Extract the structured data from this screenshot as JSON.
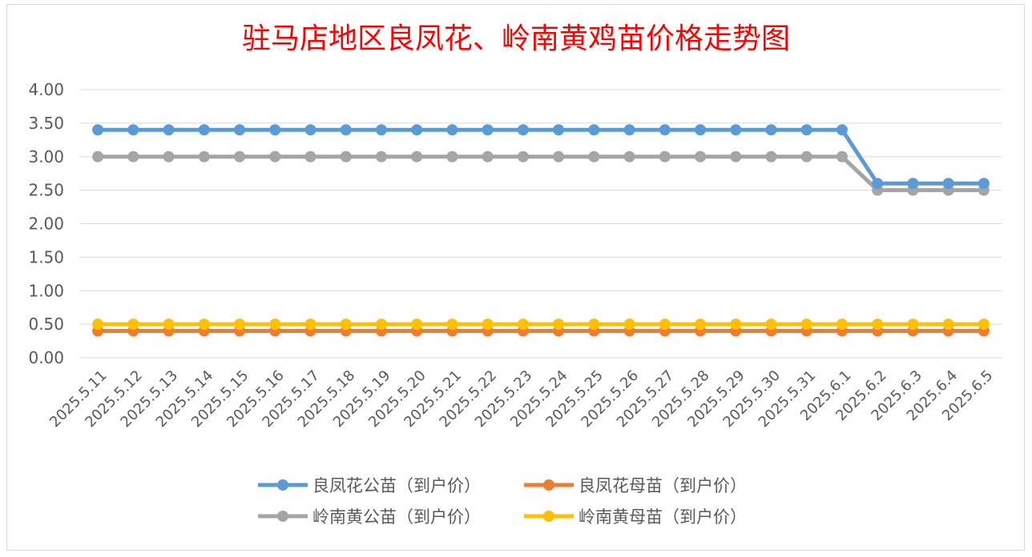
{
  "chart_data": {
    "type": "line",
    "title": "驻马店地区良凤花、岭南黄鸡苗价格走势图",
    "xlabel": "",
    "ylabel": "",
    "ylim": [
      0,
      4
    ],
    "yticks": [
      "0.00",
      "0.50",
      "1.00",
      "1.50",
      "2.00",
      "2.50",
      "3.00",
      "3.50",
      "4.00"
    ],
    "grid": true,
    "legend_position": "bottom",
    "categories": [
      "2025.5.11",
      "2025.5.12",
      "2025.5.13",
      "2025.5.14",
      "2025.5.15",
      "2025.5.16",
      "2025.5.17",
      "2025.5.18",
      "2025.5.19",
      "2025.5.20",
      "2025.5.21",
      "2025.5.22",
      "2025.5.23",
      "2025.5.24",
      "2025.5.25",
      "2025.5.26",
      "2025.5.27",
      "2025.5.28",
      "2025.5.29",
      "2025.5.30",
      "2025.5.31",
      "2025.6.1",
      "2025.6.2",
      "2025.6.3",
      "2025.6.4",
      "2025.6.5"
    ],
    "series": [
      {
        "name": "良凤花公苗（到户价）",
        "color": "#5B9BD5",
        "values": [
          3.4,
          3.4,
          3.4,
          3.4,
          3.4,
          3.4,
          3.4,
          3.4,
          3.4,
          3.4,
          3.4,
          3.4,
          3.4,
          3.4,
          3.4,
          3.4,
          3.4,
          3.4,
          3.4,
          3.4,
          3.4,
          3.4,
          2.6,
          2.6,
          2.6,
          2.6
        ]
      },
      {
        "name": "良凤花母苗（到户价）",
        "color": "#ED7D31",
        "values": [
          0.4,
          0.4,
          0.4,
          0.4,
          0.4,
          0.4,
          0.4,
          0.4,
          0.4,
          0.4,
          0.4,
          0.4,
          0.4,
          0.4,
          0.4,
          0.4,
          0.4,
          0.4,
          0.4,
          0.4,
          0.4,
          0.4,
          0.4,
          0.4,
          0.4,
          0.4
        ]
      },
      {
        "name": "岭南黄公苗（到户价）",
        "color": "#A5A5A5",
        "values": [
          3.0,
          3.0,
          3.0,
          3.0,
          3.0,
          3.0,
          3.0,
          3.0,
          3.0,
          3.0,
          3.0,
          3.0,
          3.0,
          3.0,
          3.0,
          3.0,
          3.0,
          3.0,
          3.0,
          3.0,
          3.0,
          3.0,
          2.5,
          2.5,
          2.5,
          2.5
        ]
      },
      {
        "name": "岭南黄母苗（到户价）",
        "color": "#FFC000",
        "values": [
          0.5,
          0.5,
          0.5,
          0.5,
          0.5,
          0.5,
          0.5,
          0.5,
          0.5,
          0.5,
          0.5,
          0.5,
          0.5,
          0.5,
          0.5,
          0.5,
          0.5,
          0.5,
          0.5,
          0.5,
          0.5,
          0.5,
          0.5,
          0.5,
          0.5,
          0.5
        ]
      }
    ]
  },
  "colors": {
    "title": "#FF0000",
    "axis_text": "#595959",
    "gridline": "#D9D9D9",
    "border": "#D9D9D9"
  }
}
